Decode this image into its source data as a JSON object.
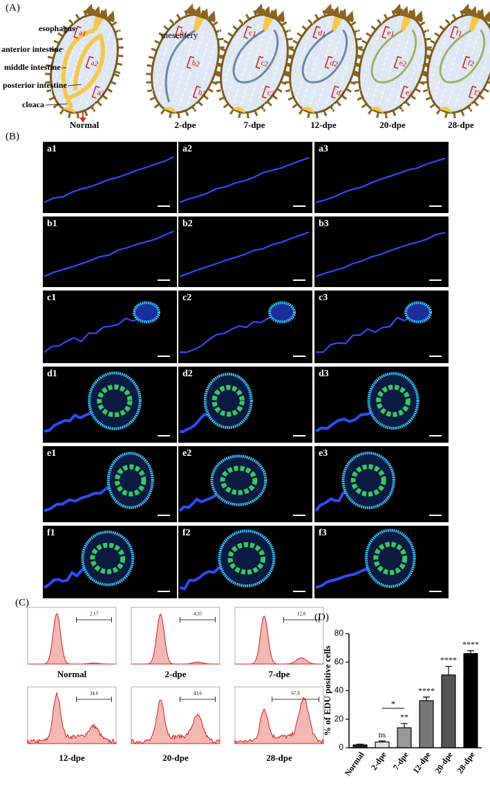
{
  "panel_a": {
    "label": "(A)",
    "anatomy_labels": [
      "esophagus",
      "anterior intestine",
      "middle intestine",
      "posterior intestine",
      "cloaca"
    ],
    "mesentery": "mesentery",
    "stages": [
      {
        "name": "Normal",
        "marks": [
          "a1",
          "a2",
          "a3"
        ]
      },
      {
        "name": "2-dpe",
        "marks": [
          "b1",
          "b2",
          "b3"
        ]
      },
      {
        "name": "7-dpe",
        "marks": [
          "c1",
          "c2",
          "c3"
        ]
      },
      {
        "name": "12-dpe",
        "marks": [
          "d1",
          "d2",
          "d3"
        ]
      },
      {
        "name": "20-dpe",
        "marks": [
          "e1",
          "e2",
          "e3"
        ]
      },
      {
        "name": "28-dpe",
        "marks": [
          "f1",
          "f2",
          "f3"
        ]
      }
    ]
  },
  "panel_b": {
    "label": "(B)",
    "rows": [
      [
        "a1",
        "a2",
        "a3"
      ],
      [
        "b1",
        "b2",
        "b3"
      ],
      [
        "c1",
        "c2",
        "c3"
      ],
      [
        "d1",
        "d2",
        "d3"
      ],
      [
        "e1",
        "e2",
        "e3"
      ],
      [
        "f1",
        "f2",
        "f3"
      ]
    ]
  },
  "panel_c": {
    "label": "(C)",
    "plots": [
      {
        "name": "Normal",
        "gate": "2.17"
      },
      {
        "name": "2-dpe",
        "gate": "4.35"
      },
      {
        "name": "7-dpe",
        "gate": "12.8"
      },
      {
        "name": "12-dpe",
        "gate": "34.6"
      },
      {
        "name": "20-dpe",
        "gate": "43.6"
      },
      {
        "name": "28-dpe",
        "gate": "67.9"
      }
    ]
  },
  "chart_data": {
    "type": "bar",
    "panel_label": "(D)",
    "y_label": "% of EDU positive cells",
    "categories": [
      "Normal",
      "2-dpe",
      "7-dpe",
      "12-dpe",
      "20-dpe",
      "28-dpe"
    ],
    "values": [
      2,
      4,
      14,
      33,
      51,
      66
    ],
    "errors": [
      0.5,
      0.8,
      3,
      2.5,
      6,
      2
    ],
    "annotations": [
      null,
      "ns",
      "**",
      "****",
      "****",
      "****"
    ],
    "comparison_label": "*",
    "colors": [
      "#222222",
      "#e6e6e6",
      "#999999",
      "#777777",
      "#555555",
      "#000000"
    ],
    "ylim": [
      0,
      80
    ],
    "yticks": [
      0,
      20,
      40,
      60,
      80
    ]
  }
}
